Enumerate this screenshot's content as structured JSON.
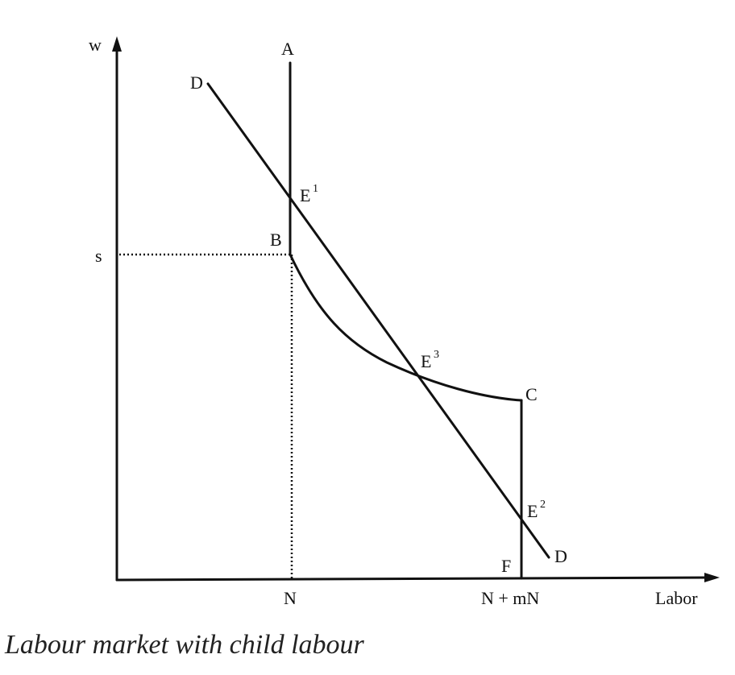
{
  "axes": {
    "y_label": "w",
    "x_label": "Labor"
  },
  "tick_labels": {
    "s": "s",
    "n": "N",
    "n_plus_mn": "N + mN"
  },
  "points": {
    "A": "A",
    "B": "B",
    "C": "C",
    "F": "F",
    "D_top": "D",
    "D_bottom": "D",
    "E1": "E",
    "E2": "E",
    "E3": "E"
  },
  "superscripts": {
    "E1": "1",
    "E2": "2",
    "E3": "3"
  },
  "caption": "Labour market with child labour"
}
